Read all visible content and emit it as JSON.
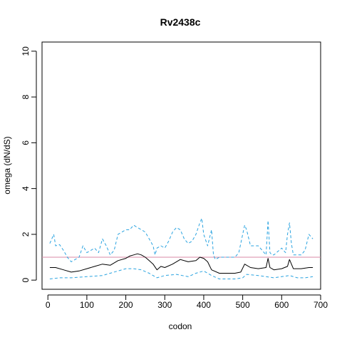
{
  "chart_data": {
    "type": "line",
    "title": "Rv2438c",
    "xlabel": "codon",
    "ylabel": "omega (dN/dS)",
    "xlim": [
      -15,
      700
    ],
    "ylim": [
      -0.4,
      10.4
    ],
    "xticks": [
      0,
      100,
      200,
      300,
      400,
      500,
      600,
      700
    ],
    "yticks": [
      0,
      2,
      4,
      6,
      8,
      10
    ],
    "grid": false,
    "legend": "none",
    "reference_line": {
      "y": 1,
      "color": "#d98aa6"
    },
    "colors": {
      "mean": "#000000",
      "ci": "#29a3e0"
    },
    "series": [
      {
        "style": "solid",
        "x": [
          5,
          20,
          40,
          60,
          80,
          100,
          120,
          140,
          160,
          180,
          200,
          210,
          220,
          230,
          240,
          250,
          260,
          270,
          280,
          290,
          300,
          320,
          340,
          360,
          380,
          390,
          400,
          410,
          420,
          440,
          460,
          480,
          495,
          505,
          520,
          540,
          560,
          565,
          570,
          580,
          600,
          615,
          620,
          630,
          650,
          670,
          680
        ],
        "y": [
          0.55,
          0.55,
          0.45,
          0.35,
          0.4,
          0.5,
          0.6,
          0.7,
          0.65,
          0.85,
          0.95,
          1.05,
          1.1,
          1.15,
          1.1,
          1.0,
          0.85,
          0.7,
          0.45,
          0.6,
          0.55,
          0.7,
          0.9,
          0.8,
          0.85,
          1.0,
          0.95,
          0.8,
          0.45,
          0.3,
          0.3,
          0.3,
          0.35,
          0.7,
          0.55,
          0.5,
          0.55,
          0.95,
          0.55,
          0.45,
          0.5,
          0.6,
          0.9,
          0.5,
          0.5,
          0.55,
          0.55
        ]
      },
      {
        "style": "dashed",
        "x": [
          5,
          15,
          20,
          30,
          40,
          50,
          60,
          70,
          80,
          90,
          100,
          110,
          120,
          130,
          140,
          150,
          160,
          170,
          180,
          190,
          200,
          210,
          220,
          230,
          240,
          250,
          260,
          270,
          275,
          280,
          290,
          300,
          310,
          320,
          330,
          340,
          350,
          360,
          370,
          380,
          390,
          395,
          400,
          410,
          420,
          425,
          430,
          440,
          460,
          480,
          490,
          500,
          505,
          510,
          520,
          540,
          550,
          560,
          565,
          570,
          575,
          580,
          600,
          610,
          615,
          620,
          625,
          630,
          650,
          660,
          670,
          680
        ],
        "y": [
          1.6,
          2.0,
          1.5,
          1.55,
          1.3,
          1.0,
          0.8,
          0.9,
          1.0,
          1.5,
          1.2,
          1.3,
          1.4,
          1.2,
          1.8,
          1.5,
          1.1,
          1.3,
          2.0,
          2.1,
          2.2,
          2.2,
          2.4,
          2.3,
          2.2,
          2.1,
          1.8,
          1.5,
          1.1,
          1.4,
          1.5,
          1.4,
          1.7,
          2.1,
          2.3,
          2.2,
          1.8,
          1.6,
          1.7,
          2.0,
          2.5,
          2.7,
          2.0,
          1.5,
          2.2,
          1.1,
          0.9,
          1.0,
          1.0,
          1.0,
          1.2,
          2.0,
          2.4,
          2.2,
          1.5,
          1.5,
          1.3,
          1.1,
          2.6,
          1.2,
          1.1,
          1.1,
          1.4,
          1.2,
          2.0,
          2.5,
          1.6,
          1.1,
          1.1,
          1.3,
          2.0,
          1.8
        ]
      },
      {
        "style": "dashed",
        "x": [
          5,
          30,
          60,
          100,
          140,
          160,
          180,
          200,
          220,
          240,
          260,
          280,
          300,
          330,
          360,
          380,
          400,
          420,
          440,
          460,
          480,
          500,
          510,
          540,
          560,
          580,
          600,
          620,
          640,
          660,
          680
        ],
        "y": [
          0.05,
          0.1,
          0.1,
          0.15,
          0.2,
          0.3,
          0.4,
          0.5,
          0.5,
          0.45,
          0.3,
          0.1,
          0.2,
          0.25,
          0.15,
          0.3,
          0.4,
          0.2,
          0.05,
          0.05,
          0.05,
          0.1,
          0.25,
          0.2,
          0.15,
          0.1,
          0.15,
          0.2,
          0.1,
          0.1,
          0.15
        ]
      }
    ]
  }
}
